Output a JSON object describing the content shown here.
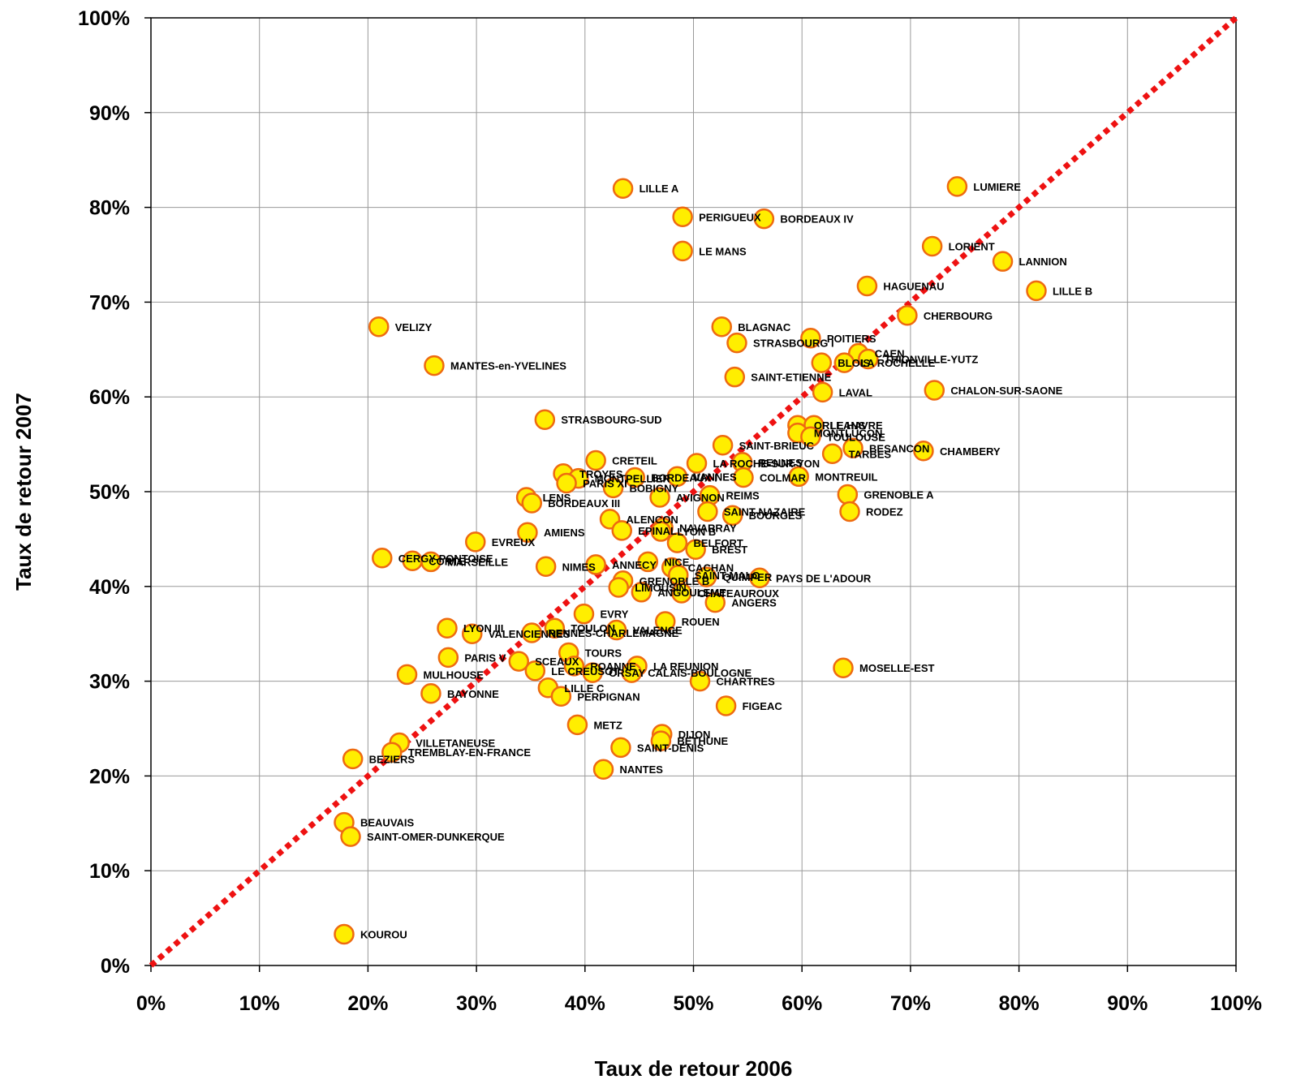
{
  "chart_data": {
    "type": "scatter",
    "title": "",
    "xlabel": "Taux de retour 2006",
    "ylabel": "Taux de retour 2007",
    "xlim": [
      0,
      100
    ],
    "ylim": [
      0,
      100
    ],
    "x_ticks": [
      "0%",
      "10%",
      "20%",
      "30%",
      "40%",
      "50%",
      "60%",
      "70%",
      "80%",
      "90%",
      "100%"
    ],
    "y_ticks": [
      "0%",
      "10%",
      "20%",
      "30%",
      "40%",
      "50%",
      "60%",
      "70%",
      "80%",
      "90%",
      "100%"
    ],
    "grid": true,
    "legend": "none",
    "reference_line": {
      "from": [
        0,
        0
      ],
      "to": [
        100,
        100
      ],
      "style": "dotted",
      "color": "#ee1111"
    },
    "marker": {
      "fill": "#ffee00",
      "stroke": "#ee6a10"
    },
    "points": [
      {
        "label": "LILLE A",
        "x": 43.5,
        "y": 82.0
      },
      {
        "label": "LUMIERE",
        "x": 74.3,
        "y": 82.2
      },
      {
        "label": "PERIGUEUX",
        "x": 49.0,
        "y": 79.0
      },
      {
        "label": "BORDEAUX IV",
        "x": 56.5,
        "y": 78.8
      },
      {
        "label": "LE MANS",
        "x": 49.0,
        "y": 75.4
      },
      {
        "label": "LORIENT",
        "x": 72.0,
        "y": 75.9
      },
      {
        "label": "LANNION",
        "x": 78.5,
        "y": 74.3
      },
      {
        "label": "HAGUENAU",
        "x": 66.0,
        "y": 71.7
      },
      {
        "label": "LILLE B",
        "x": 81.6,
        "y": 71.2
      },
      {
        "label": "CHERBOURG",
        "x": 69.7,
        "y": 68.6
      },
      {
        "label": "VELIZY",
        "x": 21.0,
        "y": 67.4
      },
      {
        "label": "BLAGNAC",
        "x": 52.6,
        "y": 67.4
      },
      {
        "label": "POITIERS",
        "x": 60.8,
        "y": 66.2
      },
      {
        "label": "STRASBOURG I",
        "x": 54.0,
        "y": 65.7
      },
      {
        "label": "CAEN",
        "x": 65.2,
        "y": 64.6
      },
      {
        "label": "THIONVILLE-YUTZ",
        "x": 66.1,
        "y": 64.0
      },
      {
        "label": "LA ROCHELLE",
        "x": 63.9,
        "y": 63.6
      },
      {
        "label": "MANTES-en-YVELINES",
        "x": 26.1,
        "y": 63.3
      },
      {
        "label": "BLOIS",
        "x": 61.8,
        "y": 63.6
      },
      {
        "label": "SAINT-ETIENNE",
        "x": 53.8,
        "y": 62.1
      },
      {
        "label": "CHALON-SUR-SAONE",
        "x": 72.2,
        "y": 60.7
      },
      {
        "label": "LAVAL",
        "x": 61.9,
        "y": 60.5
      },
      {
        "label": "STRASBOURG-SUD",
        "x": 36.3,
        "y": 57.6
      },
      {
        "label": "ORLEANS",
        "x": 59.6,
        "y": 57.0
      },
      {
        "label": "LE HAVRE",
        "x": 61.1,
        "y": 57.0
      },
      {
        "label": "MONTLUCON",
        "x": 59.6,
        "y": 56.2
      },
      {
        "label": "TOULOUSE",
        "x": 60.8,
        "y": 55.8
      },
      {
        "label": "SAINT-BRIEUC",
        "x": 52.7,
        "y": 54.9
      },
      {
        "label": "BESANCON",
        "x": 64.7,
        "y": 54.6
      },
      {
        "label": "CHAMBERY",
        "x": 71.2,
        "y": 54.3
      },
      {
        "label": "TARBES",
        "x": 62.8,
        "y": 54.0
      },
      {
        "label": "CRETEIL",
        "x": 41.0,
        "y": 53.3
      },
      {
        "label": "RENNES",
        "x": 54.5,
        "y": 53.1
      },
      {
        "label": "LA ROCHE-SUR-YON",
        "x": 50.3,
        "y": 53.0
      },
      {
        "label": "TROYES",
        "x": 38.0,
        "y": 51.9
      },
      {
        "label": "MONTPELLIER",
        "x": 39.4,
        "y": 51.4
      },
      {
        "label": "BORDEAUX I",
        "x": 44.6,
        "y": 51.5
      },
      {
        "label": "VANNES",
        "x": 48.5,
        "y": 51.6
      },
      {
        "label": "COLMAR",
        "x": 54.6,
        "y": 51.5
      },
      {
        "label": "MONTREUIL",
        "x": 59.7,
        "y": 51.6
      },
      {
        "label": "PARIS XI",
        "x": 38.3,
        "y": 50.9
      },
      {
        "label": "BOBIGNY",
        "x": 42.6,
        "y": 50.4
      },
      {
        "label": "GRENOBLE A",
        "x": 64.2,
        "y": 49.7
      },
      {
        "label": "AVIGNON",
        "x": 46.9,
        "y": 49.4
      },
      {
        "label": "REIMS",
        "x": 51.5,
        "y": 49.6
      },
      {
        "label": "LENS",
        "x": 34.6,
        "y": 49.4
      },
      {
        "label": "BORDEAUX III",
        "x": 35.1,
        "y": 48.8
      },
      {
        "label": "RODEZ",
        "x": 64.4,
        "y": 47.9
      },
      {
        "label": "SAINT-NAZAIRE",
        "x": 51.3,
        "y": 47.9
      },
      {
        "label": "BOURGES",
        "x": 53.6,
        "y": 47.5
      },
      {
        "label": "ALENCON",
        "x": 42.3,
        "y": 47.1
      },
      {
        "label": "AMIENS",
        "x": 34.7,
        "y": 45.7
      },
      {
        "label": "EPINAL",
        "x": 43.4,
        "y": 45.9
      },
      {
        "label": "NAVARRAY",
        "x": 47.2,
        "y": 46.2
      },
      {
        "label": "LYON B",
        "x": 47.0,
        "y": 45.8
      },
      {
        "label": "EVREUX",
        "x": 29.9,
        "y": 44.7
      },
      {
        "label": "BELFORT",
        "x": 48.5,
        "y": 44.6
      },
      {
        "label": "BREST",
        "x": 50.2,
        "y": 43.9
      },
      {
        "label": "CERGY-PONTOISE",
        "x": 21.3,
        "y": 43.0
      },
      {
        "label": "CORTE",
        "x": 24.1,
        "y": 42.7
      },
      {
        "label": "MARSEILLE",
        "x": 25.8,
        "y": 42.6
      },
      {
        "label": "NIMES",
        "x": 36.4,
        "y": 42.1
      },
      {
        "label": "ANNECY",
        "x": 41.0,
        "y": 42.3
      },
      {
        "label": "NICE",
        "x": 45.8,
        "y": 42.6
      },
      {
        "label": "CACHAN",
        "x": 48.0,
        "y": 42.0
      },
      {
        "label": "SAINT-MALO",
        "x": 48.6,
        "y": 41.2
      },
      {
        "label": "QUIMPER",
        "x": 51.2,
        "y": 41.0
      },
      {
        "label": "PAYS DE L'ADOUR",
        "x": 56.1,
        "y": 40.9
      },
      {
        "label": "GRENOBLE B",
        "x": 43.5,
        "y": 40.6
      },
      {
        "label": "LIMOUSIN",
        "x": 43.1,
        "y": 39.9
      },
      {
        "label": "ANGOULEME",
        "x": 45.2,
        "y": 39.4
      },
      {
        "label": "CHATEAUROUX",
        "x": 48.9,
        "y": 39.3
      },
      {
        "label": "ANGERS",
        "x": 52.0,
        "y": 38.3
      },
      {
        "label": "EVRY",
        "x": 39.9,
        "y": 37.1
      },
      {
        "label": "ROUEN",
        "x": 47.4,
        "y": 36.3
      },
      {
        "label": "TOULON",
        "x": 37.2,
        "y": 35.6
      },
      {
        "label": "VALENCE",
        "x": 42.9,
        "y": 35.4
      },
      {
        "label": "LYON III",
        "x": 27.3,
        "y": 35.6
      },
      {
        "label": "VALENCIENNES",
        "x": 29.6,
        "y": 35.0
      },
      {
        "label": "RENNES-CHARLEMAGNE",
        "x": 35.1,
        "y": 35.1
      },
      {
        "label": "TOURS",
        "x": 38.5,
        "y": 33.0
      },
      {
        "label": "PARIS V",
        "x": 27.4,
        "y": 32.5
      },
      {
        "label": "SCEAUX",
        "x": 33.9,
        "y": 32.1
      },
      {
        "label": "ROANNE",
        "x": 39.0,
        "y": 31.6
      },
      {
        "label": "LA REUNION",
        "x": 44.8,
        "y": 31.6
      },
      {
        "label": "LE CREUSOT",
        "x": 35.4,
        "y": 31.1
      },
      {
        "label": "ORSAY",
        "x": 40.7,
        "y": 30.9
      },
      {
        "label": "CALAIS-BOULOGNE",
        "x": 44.3,
        "y": 30.9
      },
      {
        "label": "MOSELLE-EST",
        "x": 63.8,
        "y": 31.4
      },
      {
        "label": "MULHOUSE",
        "x": 23.6,
        "y": 30.7
      },
      {
        "label": "CHARTRES",
        "x": 50.6,
        "y": 30.0
      },
      {
        "label": "LILLE C",
        "x": 36.6,
        "y": 29.3
      },
      {
        "label": "BAYONNE",
        "x": 25.8,
        "y": 28.7
      },
      {
        "label": "PERPIGNAN",
        "x": 37.8,
        "y": 28.4
      },
      {
        "label": "FIGEAC",
        "x": 53.0,
        "y": 27.4
      },
      {
        "label": "METZ",
        "x": 39.3,
        "y": 25.4
      },
      {
        "label": "DIJON",
        "x": 47.1,
        "y": 24.4
      },
      {
        "label": "BETHUNE",
        "x": 47.0,
        "y": 23.7
      },
      {
        "label": "VILLETANEUSE",
        "x": 22.9,
        "y": 23.5
      },
      {
        "label": "SAINT-DENIS",
        "x": 43.3,
        "y": 23.0
      },
      {
        "label": "TREMBLAY-EN-FRANCE",
        "x": 22.2,
        "y": 22.5
      },
      {
        "label": "BEZIERS",
        "x": 18.6,
        "y": 21.8
      },
      {
        "label": "NANTES",
        "x": 41.7,
        "y": 20.7
      },
      {
        "label": "BEAUVAIS",
        "x": 17.8,
        "y": 15.1
      },
      {
        "label": "SAINT-OMER-DUNKERQUE",
        "x": 18.4,
        "y": 13.6
      },
      {
        "label": "KOUROU",
        "x": 17.8,
        "y": 3.3
      }
    ]
  }
}
